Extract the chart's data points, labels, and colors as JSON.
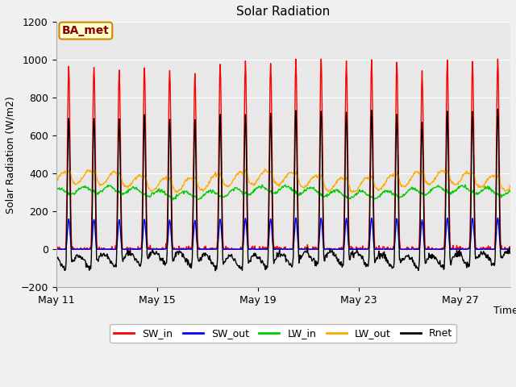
{
  "title": "Solar Radiation",
  "ylabel": "Solar Radiation (W/m2)",
  "xlabel": "Time",
  "ylim": [
    -200,
    1200
  ],
  "yticks": [
    -200,
    0,
    200,
    400,
    600,
    800,
    1000,
    1200
  ],
  "xtick_labels": [
    "May 11",
    "May 15",
    "May 19",
    "May 23",
    "May 27"
  ],
  "xtick_positions": [
    0,
    4,
    8,
    12,
    16
  ],
  "series_colors": {
    "SW_in": "#ff0000",
    "SW_out": "#0000ff",
    "LW_in": "#00cc00",
    "LW_out": "#ffaa00",
    "Rnet": "#000000"
  },
  "annotation_text": "BA_met",
  "annotation_bg": "#ffffcc",
  "annotation_border": "#cc8800",
  "fig_bg": "#f0f0f0",
  "plot_bg": "#e8e8e8",
  "n_days": 18,
  "figsize": [
    6.4,
    4.8
  ],
  "dpi": 100
}
